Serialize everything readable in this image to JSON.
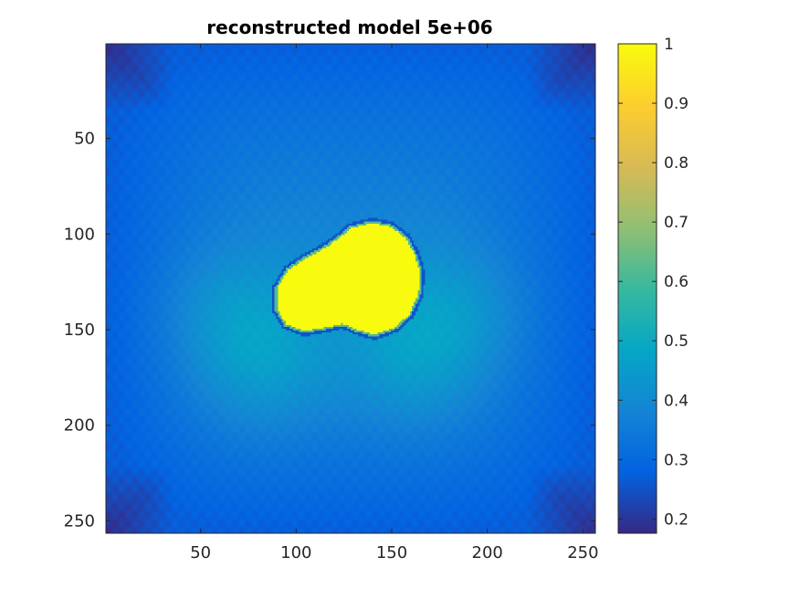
{
  "chart_data": {
    "type": "heatmap",
    "title": "reconstructed model 5e+06",
    "xlabel": "",
    "ylabel": "",
    "image_size": [
      256,
      256
    ],
    "xlim": [
      0.5,
      256.5
    ],
    "ylim": [
      0.5,
      256.5
    ],
    "y_axis_reversed": true,
    "x_ticks": [
      50,
      100,
      150,
      200,
      250
    ],
    "y_ticks": [
      50,
      100,
      150,
      200,
      250
    ],
    "grid": false,
    "colormap": "parula",
    "clim": [
      0.176,
      1.0
    ],
    "colorbar_ticks": [
      0.2,
      0.3,
      0.4,
      0.5,
      0.6,
      0.7,
      0.8,
      0.9,
      1
    ],
    "field": {
      "background_corner_value": 0.19,
      "background_edge_value": 0.27,
      "background_center_value": 0.39,
      "lobe_value": 0.47,
      "lobes": [
        {
          "x": 65,
          "y": 140
        },
        {
          "x": 185,
          "y": 140
        },
        {
          "x": 82,
          "y": 168
        },
        {
          "x": 160,
          "y": 165
        }
      ],
      "inclusion_value": 1.0,
      "inclusion_boundary_value": 0.25,
      "inclusion_outline": [
        [
          140,
          93
        ],
        [
          150,
          95
        ],
        [
          158,
          101
        ],
        [
          163,
          110
        ],
        [
          166,
          120
        ],
        [
          165,
          132
        ],
        [
          160,
          143
        ],
        [
          152,
          150
        ],
        [
          141,
          154
        ],
        [
          131,
          151
        ],
        [
          124,
          148
        ],
        [
          116,
          150
        ],
        [
          104,
          152
        ],
        [
          94,
          148
        ],
        [
          89,
          140
        ],
        [
          89,
          128
        ],
        [
          95,
          118
        ],
        [
          104,
          112
        ],
        [
          115,
          106
        ],
        [
          122,
          101
        ],
        [
          128,
          96
        ]
      ]
    }
  },
  "colors": {
    "parula": [
      "#352a87",
      "#0363e1",
      "#1485d4",
      "#06a7c6",
      "#38b99e",
      "#92bf73",
      "#d9ba56",
      "#fcce2e",
      "#f9fb0e"
    ],
    "axes_background": "#ffffff",
    "axis_color": "#262626"
  }
}
